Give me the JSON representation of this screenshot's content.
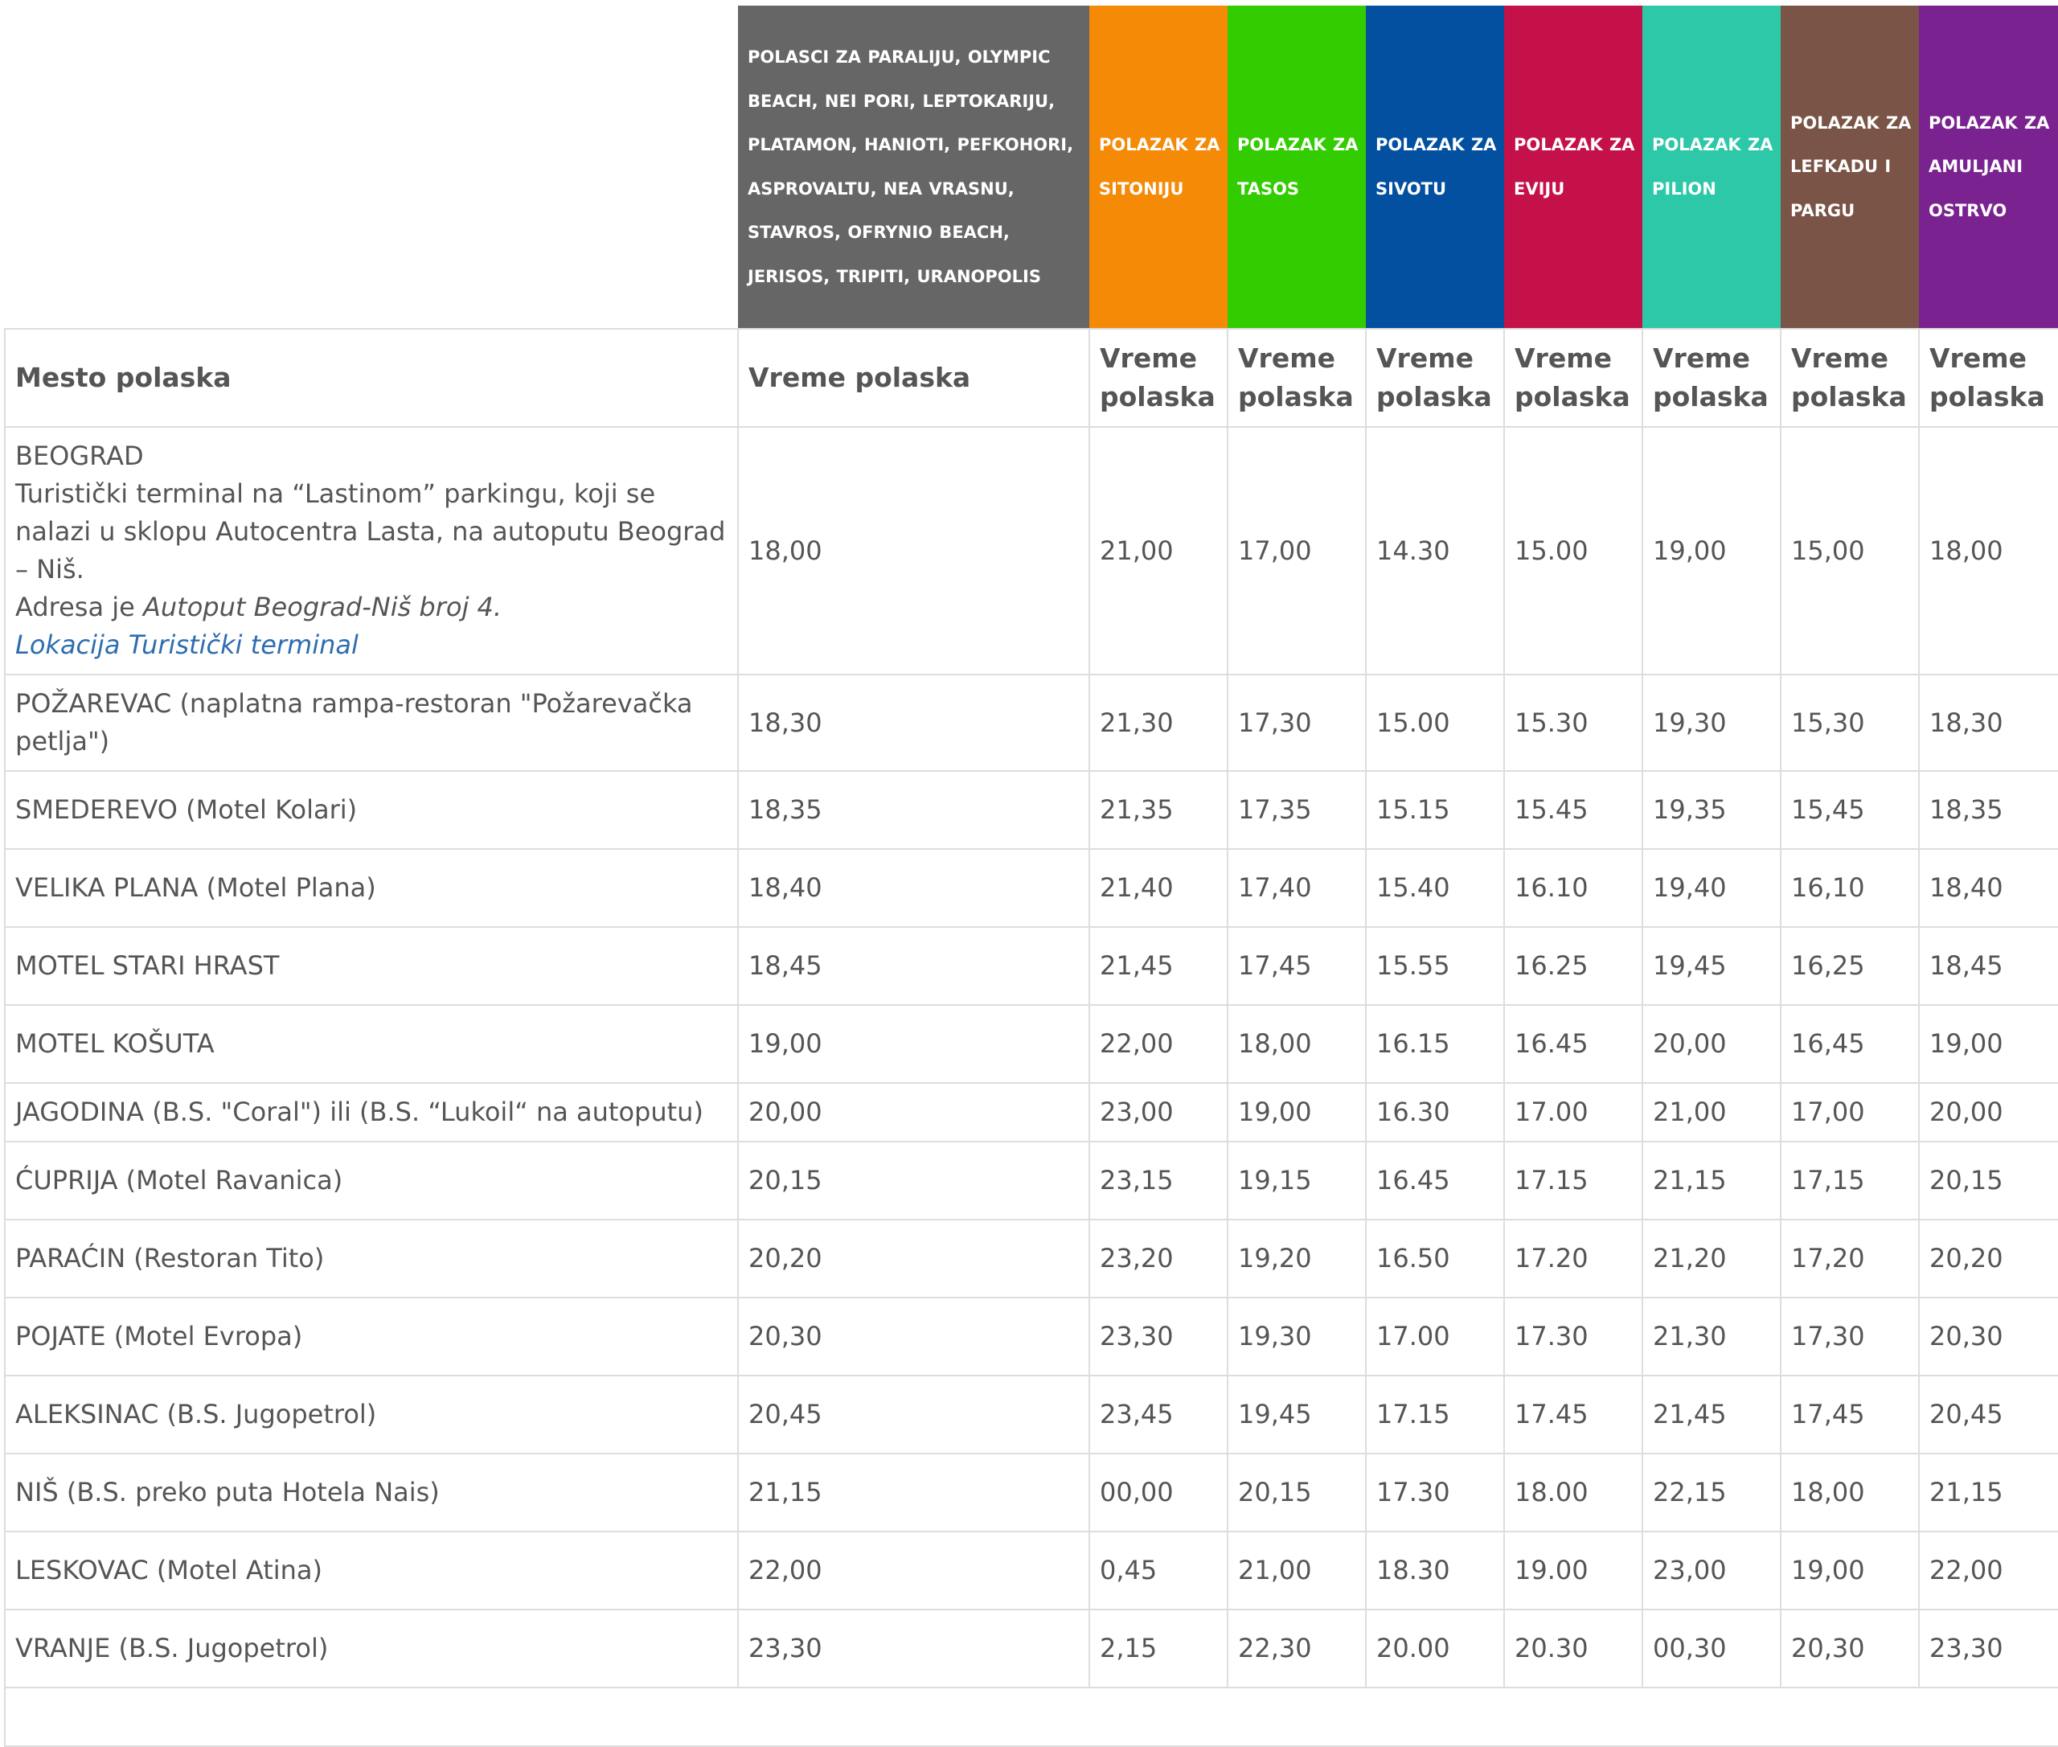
{
  "destinations": [
    {
      "label": "POLASCI ZA PARALIJU, OLYMPIC BEACH, NEI PORI, LEPTOKARIJU, PLATAMON, HANIOTI, PEFKOHORI, ASPROVALTU, NEA VRASNU, STAVROS, OFRYNIO BEACH, JERISOS, TRIPITI, URANOPOLIS",
      "color": "#666666"
    },
    {
      "label": "POLAZAK ZA SITONIJU",
      "color": "#f58a07"
    },
    {
      "label": "POLAZAK ZA TASOS",
      "color": "#33cc00"
    },
    {
      "label": "POLAZAK ZA SIVOTU",
      "color": "#02509f"
    },
    {
      "label": "POLAZAK ZA EVIJU",
      "color": "#c5114a"
    },
    {
      "label": "POLAZAK ZA PILION",
      "color": "#2dc8a8"
    },
    {
      "label": "POLAZAK ZA LEFKADU I PARGU",
      "color": "#7a5446"
    },
    {
      "label": "POLAZAK ZA AMULJANI OSTRVO",
      "color": "#7a2390"
    }
  ],
  "headers": {
    "place": "Mesto polaska",
    "time": [
      "Vreme polaska",
      "Vreme polaska",
      "Vreme polaska",
      "Vreme polaska",
      "Vreme polaska",
      "Vreme polaska",
      "Vreme polaska",
      "Vreme polaska"
    ]
  },
  "beograd": {
    "title": "BEOGRAD",
    "line1": "Turistički terminal na “Lastinom” parkingu, koji se nalazi u sklopu Autocentra Lasta, na autoputu Beograd – Niš.",
    "addr_prefix": "Adresa je ",
    "addr": "Autoput Beograd-Niš broj 4.",
    "link": "Lokacija Turistički terminal",
    "times": [
      "18,00",
      "21,00",
      "17,00",
      "14.30",
      "15.00",
      "19,00",
      "15,00",
      "18,00"
    ]
  },
  "rows": [
    {
      "place": "POŽAREVAC (naplatna rampa-restoran \"Požarevačka petlja\")",
      "times": [
        "18,30",
        "21,30",
        "17,30",
        "15.00",
        "15.30",
        "19,30",
        "15,30",
        "18,30"
      ]
    },
    {
      "place": "SMEDEREVO (Motel Kolari)",
      "times": [
        "18,35",
        "21,35",
        "17,35",
        "15.15",
        "15.45",
        "19,35",
        "15,45",
        "18,35"
      ]
    },
    {
      "place": "VELIKA PLANA (Motel Plana)",
      "times": [
        "18,40",
        "21,40",
        "17,40",
        "15.40",
        "16.10",
        "19,40",
        "16,10",
        "18,40"
      ]
    },
    {
      "place": "MOTEL STARI HRAST",
      "times": [
        "18,45",
        "21,45",
        "17,45",
        "15.55",
        "16.25",
        "19,45",
        "16,25",
        "18,45"
      ]
    },
    {
      "place": "MOTEL KOŠUTA",
      "times": [
        "19,00",
        "22,00",
        "18,00",
        "16.15",
        "16.45",
        "20,00",
        "16,45",
        "19,00"
      ]
    },
    {
      "place": "JAGODINA (B.S. \"Coral\") ili (B.S. “Lukoil“ na autoputu)",
      "times": [
        "20,00",
        "23,00",
        "19,00",
        "16.30",
        "17.00",
        "21,00",
        "17,00",
        "20,00"
      ]
    },
    {
      "place": "ĆUPRIJA (Motel Ravanica)",
      "times": [
        "20,15",
        "23,15",
        "19,15",
        "16.45",
        "17.15",
        "21,15",
        "17,15",
        "20,15"
      ]
    },
    {
      "place": "PARAĆIN (Restoran Tito)",
      "times": [
        "20,20",
        "23,20",
        "19,20",
        "16.50",
        "17.20",
        "21,20",
        "17,20",
        "20,20"
      ]
    },
    {
      "place": "POJATE (Motel Evropa)",
      "times": [
        "20,30",
        "23,30",
        "19,30",
        "17.00",
        "17.30",
        "21,30",
        "17,30",
        "20,30"
      ]
    },
    {
      "place": "ALEKSINAC (B.S. Jugopetrol)",
      "times": [
        "20,45",
        "23,45",
        "19,45",
        "17.15",
        "17.45",
        "21,45",
        "17,45",
        "20,45"
      ]
    },
    {
      "place": "NIŠ (B.S. preko puta Hotela Nais)",
      "times": [
        "21,15",
        "00,00",
        "20,15",
        "17.30",
        "18.00",
        "22,15",
        "18,00",
        "21,15"
      ]
    },
    {
      "place": "LESKOVAC (Motel Atina)",
      "times": [
        "22,00",
        "0,45",
        "21,00",
        "18.30",
        "19.00",
        "23,00",
        "19,00",
        "22,00"
      ]
    },
    {
      "place": "VRANJE (B.S. Jugopetrol)",
      "times": [
        "23,30",
        "2,15",
        "22,30",
        "20.00",
        "20.30",
        "00,30",
        "20,30",
        "23,30"
      ]
    }
  ]
}
